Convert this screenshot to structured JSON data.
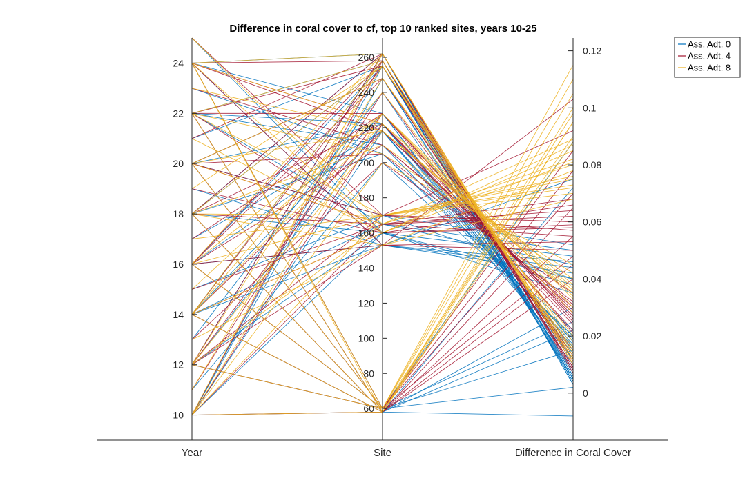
{
  "chart_data": {
    "type": "parallel-coordinates",
    "title": "Difference in coral cover to cf, top 10 ranked sites, years 10-25",
    "dimensions": [
      {
        "label": "Year",
        "range": [
          9,
          25
        ],
        "ticks": [
          10,
          12,
          14,
          16,
          18,
          20,
          22,
          24
        ]
      },
      {
        "label": "Site",
        "range": [
          42,
          271
        ],
        "ticks": [
          60,
          80,
          100,
          120,
          140,
          160,
          180,
          200,
          220,
          240,
          260
        ]
      },
      {
        "label": "Difference in Coral Cover",
        "range": [
          -0.0165,
          0.1245
        ],
        "ticks": [
          0,
          0.02,
          0.04,
          0.06,
          0.08,
          0.1,
          0.12
        ]
      }
    ],
    "legend": {
      "placement": "top-right",
      "entries": [
        "Ass. Adt. 0",
        "Ass. Adt. 4",
        "Ass. Adt. 8"
      ]
    },
    "series_colors": [
      "#0072BD",
      "#A2142F",
      "#EDB120"
    ],
    "site_values": [
      58,
      60,
      153,
      160,
      165,
      170,
      200,
      205,
      210,
      218,
      222,
      228,
      240,
      248,
      255,
      258,
      262
    ],
    "years": [
      10,
      11,
      12,
      13,
      14,
      15,
      16,
      17,
      18,
      19,
      20,
      21,
      22,
      23,
      24,
      25
    ],
    "series": [
      {
        "name": "Ass. Adt. 0",
        "lines": [
          [
            10,
            160,
            0.035
          ],
          [
            10,
            58,
            0.072
          ],
          [
            10,
            218,
            0.012
          ],
          [
            10,
            255,
            0.005
          ],
          [
            12,
            160,
            0.038
          ],
          [
            12,
            60,
            0.025
          ],
          [
            12,
            222,
            0.018
          ],
          [
            12,
            262,
            0.003
          ],
          [
            14,
            165,
            0.045
          ],
          [
            14,
            58,
            0.03
          ],
          [
            14,
            228,
            0.01
          ],
          [
            14,
            258,
            0.006
          ],
          [
            16,
            153,
            0.042
          ],
          [
            16,
            60,
            0.088
          ],
          [
            16,
            218,
            0.015
          ],
          [
            16,
            255,
            0.004
          ],
          [
            18,
            160,
            0.048
          ],
          [
            18,
            58,
            0.022
          ],
          [
            18,
            205,
            0.02
          ],
          [
            18,
            262,
            0.005
          ],
          [
            20,
            170,
            0.04
          ],
          [
            20,
            60,
            0.002
          ],
          [
            20,
            222,
            0.014
          ],
          [
            20,
            248,
            0.007
          ],
          [
            22,
            165,
            0.05
          ],
          [
            22,
            58,
            -0.008
          ],
          [
            22,
            210,
            0.019
          ],
          [
            22,
            258,
            0.004
          ],
          [
            24,
            153,
            0.046
          ],
          [
            24,
            60,
            0.015
          ],
          [
            24,
            228,
            0.012
          ],
          [
            24,
            262,
            0.003
          ],
          [
            11,
            200,
            0.02
          ],
          [
            13,
            240,
            0.008
          ],
          [
            15,
            170,
            0.052
          ],
          [
            17,
            218,
            0.017
          ],
          [
            19,
            153,
            0.044
          ],
          [
            21,
            255,
            0.006
          ],
          [
            23,
            205,
            0.022
          ],
          [
            25,
            160,
            0.04
          ],
          [
            10,
            248,
            0.005
          ],
          [
            14,
            153,
            0.075
          ],
          [
            18,
            255,
            0.004
          ],
          [
            22,
            222,
            0.016
          ]
        ]
      },
      {
        "name": "Ass. Adt. 4",
        "lines": [
          [
            10,
            165,
            0.055
          ],
          [
            10,
            58,
            0.04
          ],
          [
            10,
            222,
            0.022
          ],
          [
            10,
            258,
            0.008
          ],
          [
            12,
            170,
            0.06
          ],
          [
            12,
            60,
            0.048
          ],
          [
            12,
            228,
            0.025
          ],
          [
            12,
            262,
            0.007
          ],
          [
            14,
            160,
            0.058
          ],
          [
            14,
            58,
            0.065
          ],
          [
            14,
            218,
            0.028
          ],
          [
            14,
            255,
            0.009
          ],
          [
            16,
            153,
            0.05
          ],
          [
            16,
            60,
            0.07
          ],
          [
            16,
            210,
            0.03
          ],
          [
            16,
            258,
            0.01
          ],
          [
            18,
            165,
            0.062
          ],
          [
            18,
            58,
            0.055
          ],
          [
            18,
            222,
            0.024
          ],
          [
            18,
            262,
            0.008
          ],
          [
            20,
            170,
            0.057
          ],
          [
            20,
            60,
            0.078
          ],
          [
            20,
            205,
            0.032
          ],
          [
            20,
            248,
            0.012
          ],
          [
            22,
            160,
            0.066
          ],
          [
            22,
            58,
            0.045
          ],
          [
            22,
            228,
            0.026
          ],
          [
            22,
            255,
            0.009
          ],
          [
            24,
            153,
            0.053
          ],
          [
            24,
            60,
            0.085
          ],
          [
            24,
            218,
            0.029
          ],
          [
            24,
            258,
            0.011
          ],
          [
            11,
            240,
            0.015
          ],
          [
            13,
            200,
            0.035
          ],
          [
            15,
            165,
            0.068
          ],
          [
            17,
            228,
            0.021
          ],
          [
            19,
            160,
            0.059
          ],
          [
            21,
            262,
            0.01
          ],
          [
            23,
            210,
            0.031
          ],
          [
            25,
            170,
            0.092
          ],
          [
            12,
            153,
            0.103
          ],
          [
            16,
            248,
            0.013
          ],
          [
            20,
            165,
            0.064
          ],
          [
            24,
            222,
            0.027
          ]
        ]
      },
      {
        "name": "Ass. Adt. 8",
        "lines": [
          [
            10,
            170,
            0.075
          ],
          [
            10,
            58,
            0.09
          ],
          [
            10,
            228,
            0.03
          ],
          [
            10,
            262,
            0.01
          ],
          [
            12,
            165,
            0.08
          ],
          [
            12,
            60,
            0.095
          ],
          [
            12,
            218,
            0.035
          ],
          [
            12,
            255,
            0.012
          ],
          [
            14,
            160,
            0.085
          ],
          [
            14,
            58,
            0.1
          ],
          [
            14,
            222,
            0.038
          ],
          [
            14,
            258,
            0.013
          ],
          [
            16,
            170,
            0.07
          ],
          [
            16,
            60,
            0.11
          ],
          [
            16,
            228,
            0.033
          ],
          [
            16,
            262,
            0.011
          ],
          [
            18,
            153,
            0.078
          ],
          [
            18,
            58,
            0.098
          ],
          [
            18,
            210,
            0.04
          ],
          [
            18,
            255,
            0.014
          ],
          [
            20,
            165,
            0.082
          ],
          [
            20,
            60,
            0.105
          ],
          [
            20,
            218,
            0.036
          ],
          [
            20,
            248,
            0.015
          ],
          [
            22,
            170,
            0.073
          ],
          [
            22,
            58,
            0.088
          ],
          [
            22,
            205,
            0.042
          ],
          [
            22,
            258,
            0.012
          ],
          [
            24,
            160,
            0.087
          ],
          [
            24,
            60,
            0.115
          ],
          [
            24,
            222,
            0.034
          ],
          [
            24,
            262,
            0.01
          ],
          [
            11,
            248,
            0.018
          ],
          [
            13,
            153,
            0.068
          ],
          [
            15,
            228,
            0.028
          ],
          [
            17,
            170,
            0.076
          ],
          [
            19,
            255,
            0.016
          ],
          [
            21,
            160,
            0.081
          ],
          [
            23,
            218,
            0.037
          ],
          [
            25,
            165,
            0.089
          ],
          [
            10,
            200,
            0.045
          ],
          [
            14,
            240,
            0.02
          ],
          [
            18,
            170,
            0.072
          ],
          [
            24,
            58,
            0.095
          ]
        ]
      }
    ]
  }
}
